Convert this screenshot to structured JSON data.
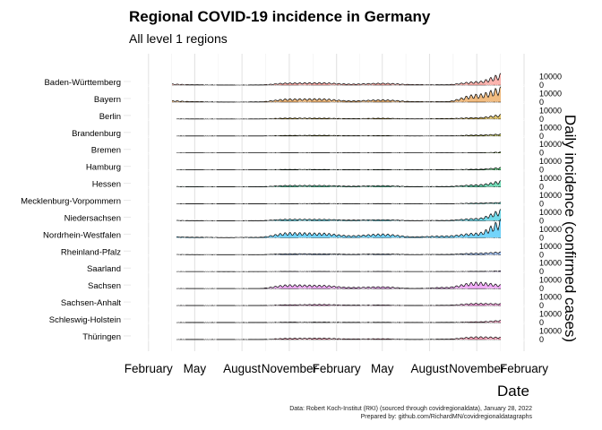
{
  "chart_data": {
    "type": "area",
    "title": "Regional COVID-19 incidence in Germany",
    "subtitle": "All level 1 regions",
    "xlabel": "Date",
    "ylabel": "Daily incidence (confirmed cases)",
    "x_ticks": [
      "February",
      "May",
      "August",
      "November",
      "February",
      "May",
      "August",
      "November",
      "February"
    ],
    "x_tick_dates": [
      "2020-02-01",
      "2020-05-01",
      "2020-08-01",
      "2020-11-01",
      "2021-02-01",
      "2021-05-01",
      "2021-08-01",
      "2021-11-01",
      "2022-02-01"
    ],
    "x_range": [
      "2020-01-01",
      "2022-02-01"
    ],
    "y_ticks": [
      0,
      10000
    ],
    "y_label_side": "right",
    "grid": true,
    "legend": "none",
    "month_labels": [
      "2020-01",
      "2020-03",
      "2020-05",
      "2020-07",
      "2020-09",
      "2020-11",
      "2021-01",
      "2021-03",
      "2021-05",
      "2021-07",
      "2021-09",
      "2021-11",
      "2022-01"
    ],
    "caption": [
      "Data: Robert Koch-Institut (RKI) (sourced through covidregionaldata), January 28, 2022",
      "Prepared by: github.com/RichardMN/covidregionaldatagraphs"
    ],
    "series": [
      {
        "name": "Baden-Württemberg",
        "color": "#f8766d",
        "values": [
          0,
          1600,
          500,
          150,
          250,
          2600,
          2900,
          1300,
          2300,
          700,
          500,
          4200,
          15000
        ]
      },
      {
        "name": "Bayern",
        "color": "#e7861b",
        "values": [
          0,
          2000,
          600,
          120,
          300,
          3800,
          4000,
          1500,
          2800,
          700,
          600,
          9000,
          19000
        ]
      },
      {
        "name": "Berlin",
        "color": "#c99800",
        "values": [
          0,
          300,
          150,
          80,
          150,
          1200,
          1100,
          500,
          1000,
          300,
          600,
          1700,
          6000
        ]
      },
      {
        "name": "Brandenburg",
        "color": "#a3a500",
        "values": [
          0,
          100,
          50,
          30,
          40,
          700,
          900,
          400,
          500,
          100,
          200,
          1200,
          2500
        ]
      },
      {
        "name": "Bremen",
        "color": "#6bb100",
        "values": [
          0,
          50,
          30,
          20,
          30,
          150,
          150,
          80,
          120,
          50,
          80,
          200,
          1200
        ]
      },
      {
        "name": "Hamburg",
        "color": "#00ba38",
        "values": [
          0,
          200,
          100,
          50,
          80,
          600,
          500,
          300,
          400,
          150,
          300,
          800,
          3200
        ]
      },
      {
        "name": "Hessen",
        "color": "#00bf7d",
        "values": [
          0,
          500,
          300,
          100,
          200,
          1800,
          1800,
          900,
          1500,
          400,
          500,
          2500,
          8000
        ]
      },
      {
        "name": "Mecklenburg-Vorpommern",
        "color": "#00c0af",
        "values": [
          0,
          50,
          20,
          10,
          20,
          200,
          400,
          200,
          300,
          80,
          100,
          900,
          1800
        ]
      },
      {
        "name": "Niedersachsen",
        "color": "#00bcd8",
        "values": [
          0,
          600,
          250,
          100,
          200,
          1900,
          1800,
          900,
          1300,
          300,
          500,
          2800,
          15000
        ]
      },
      {
        "name": "Nordrhein-Westfalen",
        "color": "#00b0f6",
        "values": [
          0,
          1500,
          700,
          300,
          600,
          6000,
          5500,
          2500,
          4500,
          1200,
          2200,
          5500,
          24000
        ]
      },
      {
        "name": "Rheinland-Pfalz",
        "color": "#619cff",
        "values": [
          0,
          300,
          150,
          50,
          100,
          1200,
          1100,
          500,
          900,
          250,
          400,
          1900,
          3500
        ]
      },
      {
        "name": "Saarland",
        "color": "#b983ff",
        "values": [
          0,
          150,
          50,
          20,
          30,
          300,
          300,
          150,
          250,
          60,
          100,
          400,
          1100
        ]
      },
      {
        "name": "Sachsen",
        "color": "#e76bf3",
        "values": [
          0,
          300,
          100,
          30,
          100,
          4500,
          4000,
          1500,
          2200,
          200,
          1500,
          7500,
          4000
        ]
      },
      {
        "name": "Sachsen-Anhalt",
        "color": "#fd61d1",
        "values": [
          0,
          100,
          50,
          20,
          50,
          1000,
          1400,
          600,
          700,
          100,
          400,
          2600,
          2200
        ]
      },
      {
        "name": "Schleswig-Holstein",
        "color": "#ff67a4",
        "values": [
          0,
          150,
          60,
          30,
          60,
          500,
          500,
          300,
          350,
          120,
          250,
          900,
          2800
        ]
      },
      {
        "name": "Thüringen",
        "color": "#ff6c91",
        "values": [
          0,
          100,
          50,
          20,
          50,
          1400,
          1600,
          700,
          900,
          150,
          500,
          3200,
          2600
        ]
      }
    ]
  }
}
